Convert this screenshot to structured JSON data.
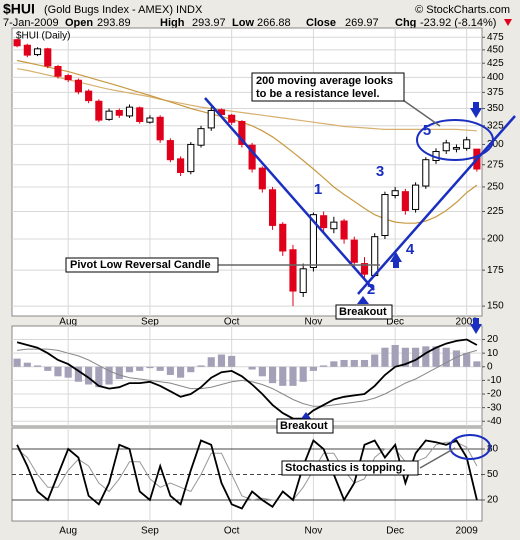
{
  "chart_data": [
    {
      "type": "candlestick",
      "title": "$HUI",
      "subtitle": "(Gold Bugs Index - AMEX) INDX",
      "source": "© StockCharts.com",
      "date": "7-Jan-2009",
      "quote": [
        {
          "label": "Open",
          "value": 293.89
        },
        {
          "label": "High",
          "value": 293.97
        },
        {
          "label": "Low",
          "value": 266.88
        },
        {
          "label": "Close",
          "value": 269.97
        },
        {
          "label": "Chg",
          "value": -23.92,
          "value_label": "-23.92 (-8.14%)"
        }
      ],
      "panel_label": "$HUI (Daily)",
      "categories": [
        null,
        null,
        null,
        null,
        null,
        "Aug",
        null,
        null,
        null,
        null,
        null,
        null,
        null,
        "Sep",
        null,
        null,
        null,
        null,
        null,
        null,
        null,
        "Oct",
        null,
        null,
        null,
        null,
        null,
        null,
        null,
        "Nov",
        null,
        null,
        null,
        null,
        null,
        null,
        null,
        "Dec",
        null,
        null,
        null,
        null,
        null,
        null,
        "2009",
        null
      ],
      "open": [
        470,
        459,
        441,
        452,
        419,
        403,
        395,
        377,
        361,
        334,
        347,
        339,
        351,
        330,
        337,
        305,
        282,
        267,
        299,
        322,
        348,
        340,
        331,
        299,
        271,
        247,
        213,
        191,
        159,
        177,
        221,
        209,
        216,
        199,
        180,
        171,
        203,
        241,
        245,
        227,
        251,
        280,
        292,
        294,
        295,
        294
      ],
      "high": [
        472,
        462,
        455,
        454,
        422,
        406,
        398,
        380,
        364,
        350,
        350,
        356,
        353,
        340,
        340,
        308,
        285,
        303,
        325,
        352,
        350,
        342,
        333,
        302,
        273,
        250,
        215,
        195,
        180,
        224,
        225,
        220,
        218,
        202,
        185,
        205,
        245,
        250,
        248,
        255,
        284,
        295,
        306,
        300,
        310,
        294
      ],
      "low": [
        455,
        436,
        438,
        416,
        398,
        392,
        372,
        358,
        330,
        332,
        336,
        336,
        328,
        328,
        302,
        278,
        262,
        264,
        296,
        318,
        336,
        326,
        296,
        266,
        244,
        208,
        186,
        150,
        156,
        174,
        206,
        205,
        196,
        178,
        168,
        170,
        200,
        238,
        222,
        224,
        248,
        276,
        288,
        290,
        292,
        267
      ],
      "close": [
        458,
        440,
        452,
        420,
        402,
        396,
        376,
        362,
        333,
        346,
        340,
        352,
        331,
        336,
        306,
        281,
        266,
        300,
        321,
        347,
        341,
        330,
        300,
        270,
        248,
        212,
        190,
        160,
        176,
        222,
        210,
        215,
        200,
        181,
        172,
        202,
        242,
        246,
        226,
        252,
        281,
        291,
        302,
        296,
        306,
        270
      ],
      "up_color": "#000000",
      "down_color": "#e0001b",
      "moving_averages": [
        {
          "color": "#d8b070",
          "values": [
            415,
            412,
            408,
            404,
            400,
            396,
            392,
            388,
            384,
            380,
            377,
            374,
            371,
            368,
            364,
            361,
            358,
            355,
            352,
            350,
            348,
            346,
            344,
            342,
            340,
            338,
            336,
            334,
            332,
            330,
            328,
            326,
            324,
            323,
            322,
            321,
            320,
            320,
            320,
            320,
            320,
            320,
            320,
            320,
            319,
            318
          ]
        },
        {
          "color": "#c89a40",
          "values": [
            430,
            426,
            422,
            418,
            414,
            410,
            405,
            400,
            395,
            390,
            385,
            380,
            375,
            370,
            365,
            360,
            355,
            350,
            346,
            342,
            338,
            334,
            330,
            325,
            318,
            310,
            300,
            290,
            280,
            270,
            260,
            250,
            242,
            235,
            228,
            222,
            218,
            215,
            214,
            214,
            216,
            220,
            226,
            234,
            244,
            252
          ]
        }
      ],
      "log_scale": true,
      "ylim": [
        145,
        490
      ],
      "yticks": [
        150,
        175,
        200,
        225,
        250,
        275,
        300,
        325,
        350,
        375,
        400,
        425,
        450,
        475
      ],
      "grid": true,
      "annotations": [
        {
          "lines": [
            "200 moving average looks",
            "to be a resistance level."
          ]
        },
        {
          "text": "Pivot Low Reversal Candle"
        },
        {
          "text": "Breakout"
        },
        {
          "text": "1"
        },
        {
          "text": "2"
        },
        {
          "text": "3"
        },
        {
          "text": "4"
        },
        {
          "text": "5"
        }
      ]
    },
    {
      "type": "macd",
      "series": [
        {
          "type": "bar",
          "color": "#a4a0b8",
          "values": [
            6,
            3,
            1,
            -3,
            -7,
            -8,
            -11,
            -13,
            -15,
            -13,
            -9,
            -4,
            -3,
            -1,
            -3,
            -6,
            -8,
            -4,
            1,
            7,
            9,
            8,
            0,
            -2,
            -7,
            -12,
            -14,
            -14,
            -11,
            -3,
            1,
            4,
            5,
            5,
            5,
            9,
            14,
            16,
            14,
            14,
            15,
            15,
            14,
            12,
            10,
            4
          ]
        },
        {
          "type": "line",
          "color": "#888888",
          "values": [
            12,
            13,
            13,
            13,
            12,
            10,
            8,
            5,
            1,
            -3,
            -6,
            -8,
            -9,
            -10,
            -11,
            -12,
            -14,
            -16,
            -16,
            -15,
            -13,
            -11,
            -10,
            -11,
            -13,
            -16,
            -20,
            -24,
            -27,
            -29,
            -29,
            -28,
            -27,
            -26,
            -25,
            -23,
            -20,
            -16,
            -12,
            -9,
            -5,
            -1,
            3,
            7,
            10,
            12
          ]
        },
        {
          "type": "line",
          "color": "#000000",
          "values": [
            18,
            16,
            14,
            10,
            5,
            2,
            -3,
            -8,
            -14,
            -16,
            -15,
            -12,
            -12,
            -11,
            -14,
            -18,
            -22,
            -20,
            -15,
            -8,
            -4,
            -3,
            -7,
            -13,
            -20,
            -28,
            -34,
            -38,
            -38,
            -32,
            -28,
            -24,
            -22,
            -21,
            -20,
            -14,
            -6,
            0,
            2,
            5,
            10,
            14,
            17,
            19,
            20,
            16
          ]
        }
      ],
      "ylim": [
        -42,
        27
      ],
      "yticks": [
        -40,
        -30,
        -20,
        -10,
        0,
        10,
        20
      ],
      "grid": true,
      "annotations": [
        {
          "text": "Breakout"
        }
      ]
    },
    {
      "type": "line",
      "categories": [
        null,
        null,
        null,
        null,
        null,
        "Aug",
        null,
        null,
        null,
        null,
        null,
        null,
        null,
        "Sep",
        null,
        null,
        null,
        null,
        null,
        null,
        null,
        "Oct",
        null,
        null,
        null,
        null,
        null,
        null,
        null,
        "Nov",
        null,
        null,
        null,
        null,
        null,
        null,
        null,
        "Dec",
        null,
        null,
        null,
        null,
        null,
        null,
        "2009",
        null
      ],
      "series": [
        {
          "color": "#999999",
          "values": [
            80,
            70,
            50,
            35,
            35,
            55,
            68,
            60,
            40,
            30,
            45,
            65,
            65,
            45,
            35,
            40,
            35,
            30,
            50,
            75,
            75,
            50,
            25,
            20,
            22,
            20,
            20,
            20,
            35,
            55,
            75,
            75,
            55,
            40,
            45,
            70,
            80,
            80,
            65,
            65,
            70,
            85,
            88,
            88,
            82,
            60
          ]
        },
        {
          "color": "#000000",
          "values": [
            85,
            60,
            30,
            20,
            50,
            80,
            70,
            25,
            15,
            40,
            85,
            80,
            30,
            20,
            60,
            25,
            15,
            55,
            90,
            85,
            40,
            15,
            10,
            30,
            20,
            12,
            30,
            20,
            60,
            90,
            80,
            50,
            20,
            40,
            85,
            90,
            70,
            85,
            40,
            75,
            90,
            88,
            85,
            90,
            70,
            20
          ]
        }
      ],
      "ylim": [
        0,
        100
      ],
      "yticks": [
        20,
        50,
        80
      ],
      "grid": true,
      "annotations": [
        {
          "text": "Stochastics is topping."
        }
      ]
    }
  ]
}
